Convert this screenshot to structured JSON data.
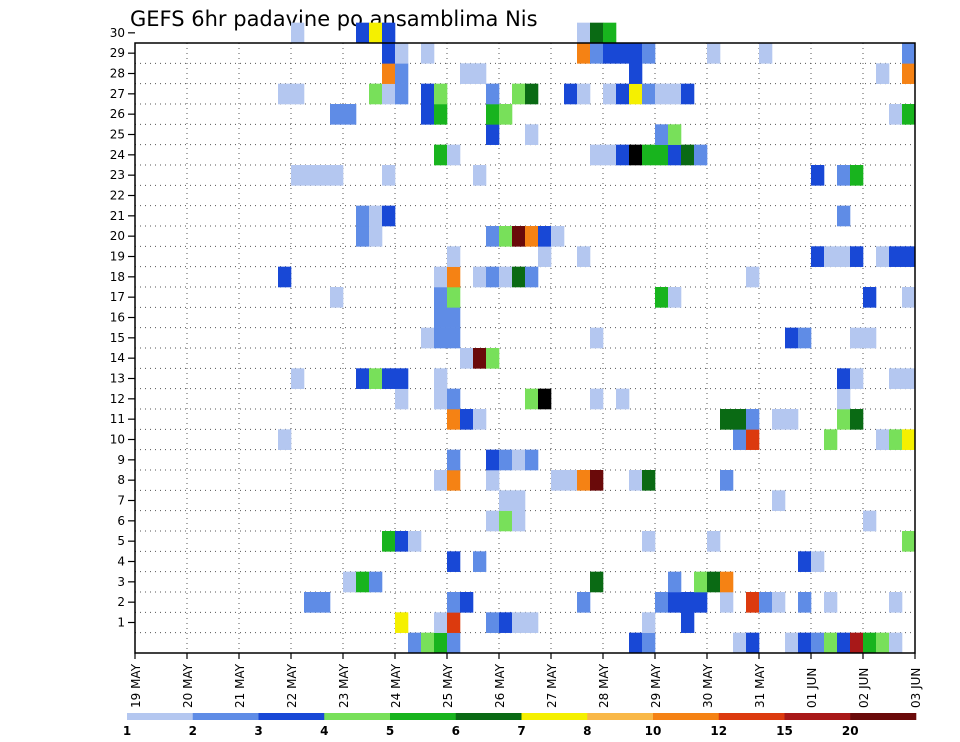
{
  "chart_data": {
    "type": "heatmap",
    "title": "GEFS 6hr padavine po ansamblima Nis",
    "xlabel": "",
    "ylabel": "",
    "x_tick_labels": [
      "19 MAY",
      "20 MAY",
      "21 MAY",
      "22 MAY",
      "23 MAY",
      "24 MAY",
      "25 MAY",
      "26 MAY",
      "27 MAY",
      "28 MAY",
      "29 MAY",
      "30 MAY",
      "31 MAY",
      "01 JUN",
      "02 JUN",
      "03 JUN"
    ],
    "y_tick_labels": [
      "1",
      "2",
      "3",
      "4",
      "5",
      "6",
      "7",
      "8",
      "9",
      "10",
      "11",
      "12",
      "13",
      "14",
      "15",
      "16",
      "17",
      "18",
      "19",
      "20",
      "21",
      "22",
      "23",
      "24",
      "25",
      "26",
      "27",
      "28",
      "29",
      "30"
    ],
    "x_range_steps": [
      0,
      60
    ],
    "y_range_members": [
      0,
      30
    ],
    "grid": true,
    "legend": "bottom",
    "colorbar": {
      "labels": [
        "1",
        "2",
        "3",
        "4",
        "5",
        "6",
        "7",
        "8",
        "10",
        "12",
        "15",
        "20"
      ],
      "colors": [
        "#b4c7f0",
        "#5f8ce6",
        "#1848d6",
        "#78e05a",
        "#18b41e",
        "#0a6a14",
        "#f5f000",
        "#f9b848",
        "#f58214",
        "#dc3a0e",
        "#a81818",
        "#6a0a0a"
      ]
    },
    "member_rows": {
      "30": [
        [
          12,
          1
        ],
        [
          17,
          3
        ],
        [
          18,
          7
        ],
        [
          19,
          3
        ],
        [
          34,
          1
        ],
        [
          35,
          6
        ],
        [
          36,
          5
        ]
      ],
      "29": [
        [
          19,
          3
        ],
        [
          20,
          1
        ],
        [
          22,
          1
        ],
        [
          34,
          9
        ],
        [
          35,
          2
        ],
        [
          36,
          3
        ],
        [
          37,
          3
        ],
        [
          38,
          3
        ],
        [
          39,
          2
        ],
        [
          44,
          1
        ],
        [
          48,
          1
        ],
        [
          59,
          2
        ]
      ],
      "28": [
        [
          19,
          9
        ],
        [
          20,
          2
        ],
        [
          25,
          1
        ],
        [
          26,
          1
        ],
        [
          38,
          3
        ],
        [
          57,
          1
        ],
        [
          59,
          9
        ]
      ],
      "27": [
        [
          11,
          1
        ],
        [
          12,
          1
        ],
        [
          18,
          4
        ],
        [
          19,
          1
        ],
        [
          20,
          2
        ],
        [
          22,
          3
        ],
        [
          23,
          4
        ],
        [
          27,
          2
        ],
        [
          29,
          4
        ],
        [
          30,
          6
        ],
        [
          33,
          3
        ],
        [
          34,
          1
        ],
        [
          36,
          1
        ],
        [
          37,
          3
        ],
        [
          38,
          7
        ],
        [
          39,
          2
        ],
        [
          40,
          1
        ],
        [
          41,
          1
        ],
        [
          42,
          3
        ]
      ],
      "26": [
        [
          15,
          2
        ],
        [
          16,
          2
        ],
        [
          22,
          3
        ],
        [
          23,
          5
        ],
        [
          27,
          5
        ],
        [
          28,
          4
        ],
        [
          58,
          1
        ],
        [
          59,
          5
        ]
      ],
      "25": [
        [
          27,
          3
        ],
        [
          30,
          1
        ],
        [
          40,
          2
        ],
        [
          41,
          4
        ]
      ],
      "24": [
        [
          23,
          5
        ],
        [
          24,
          1
        ],
        [
          35,
          1
        ],
        [
          36,
          1
        ],
        [
          37,
          3
        ],
        [
          38,
          14
        ],
        [
          39,
          5
        ],
        [
          40,
          5
        ],
        [
          41,
          3
        ],
        [
          42,
          6
        ],
        [
          43,
          2
        ]
      ],
      "23": [
        [
          12,
          1
        ],
        [
          13,
          1
        ],
        [
          14,
          1
        ],
        [
          15,
          1
        ],
        [
          19,
          1
        ],
        [
          26,
          1
        ],
        [
          52,
          3
        ],
        [
          54,
          2
        ],
        [
          55,
          5
        ]
      ],
      "21": [
        [
          17,
          2
        ],
        [
          18,
          1
        ],
        [
          19,
          3
        ],
        [
          54,
          2
        ]
      ],
      "20": [
        [
          17,
          2
        ],
        [
          18,
          1
        ],
        [
          27,
          2
        ],
        [
          28,
          4
        ],
        [
          29,
          12
        ],
        [
          30,
          9
        ],
        [
          31,
          3
        ],
        [
          32,
          1
        ]
      ],
      "19": [
        [
          24,
          1
        ],
        [
          31,
          1
        ],
        [
          34,
          1
        ],
        [
          52,
          1
        ],
        [
          52,
          3
        ],
        [
          53,
          1
        ],
        [
          54,
          1
        ],
        [
          55,
          3
        ],
        [
          57,
          1
        ],
        [
          58,
          3
        ],
        [
          59,
          3
        ]
      ],
      "18": [
        [
          11,
          3
        ],
        [
          23,
          1
        ],
        [
          24,
          9
        ],
        [
          26,
          1
        ],
        [
          27,
          2
        ],
        [
          28,
          1
        ],
        [
          29,
          6
        ],
        [
          30,
          2
        ],
        [
          47,
          1
        ]
      ],
      "17": [
        [
          15,
          1
        ],
        [
          23,
          2
        ],
        [
          24,
          4
        ],
        [
          40,
          5
        ],
        [
          41,
          1
        ],
        [
          56,
          3
        ],
        [
          59,
          1
        ]
      ],
      "16": [
        [
          23,
          2
        ],
        [
          24,
          2
        ]
      ],
      "15": [
        [
          22,
          1
        ],
        [
          23,
          2
        ],
        [
          24,
          2
        ],
        [
          35,
          1
        ],
        [
          50,
          3
        ],
        [
          51,
          2
        ],
        [
          55,
          1
        ],
        [
          56,
          1
        ]
      ],
      "14": [
        [
          25,
          1
        ],
        [
          26,
          12
        ],
        [
          27,
          4
        ]
      ],
      "13": [
        [
          12,
          1
        ],
        [
          17,
          3
        ],
        [
          18,
          4
        ],
        [
          19,
          3
        ],
        [
          20,
          3
        ],
        [
          23,
          1
        ],
        [
          54,
          3
        ],
        [
          55,
          1
        ],
        [
          58,
          1
        ],
        [
          59,
          1
        ]
      ],
      "12": [
        [
          20,
          1
        ],
        [
          23,
          1
        ],
        [
          24,
          2
        ],
        [
          30,
          4
        ],
        [
          31,
          14
        ],
        [
          35,
          1
        ],
        [
          37,
          1
        ],
        [
          54,
          1
        ]
      ],
      "11": [
        [
          24,
          9
        ],
        [
          25,
          3
        ],
        [
          26,
          1
        ],
        [
          45,
          6
        ],
        [
          46,
          6
        ],
        [
          47,
          2
        ],
        [
          49,
          1
        ],
        [
          50,
          1
        ],
        [
          54,
          4
        ],
        [
          55,
          6
        ]
      ],
      "10": [
        [
          11,
          1
        ],
        [
          46,
          2
        ],
        [
          47,
          10
        ],
        [
          53,
          4
        ],
        [
          57,
          1
        ],
        [
          58,
          4
        ],
        [
          59,
          7
        ]
      ],
      "9": [
        [
          24,
          2
        ],
        [
          27,
          3
        ],
        [
          28,
          2
        ],
        [
          29,
          1
        ],
        [
          30,
          2
        ]
      ],
      "8": [
        [
          23,
          1
        ],
        [
          24,
          9
        ],
        [
          27,
          1
        ],
        [
          32,
          1
        ],
        [
          33,
          1
        ],
        [
          34,
          9
        ],
        [
          35,
          12
        ],
        [
          38,
          1
        ],
        [
          39,
          6
        ],
        [
          45,
          2
        ]
      ],
      "7": [
        [
          28,
          1
        ],
        [
          29,
          1
        ],
        [
          49,
          1
        ]
      ],
      "6": [
        [
          27,
          1
        ],
        [
          28,
          4
        ],
        [
          29,
          1
        ],
        [
          56,
          1
        ]
      ],
      "5": [
        [
          19,
          5
        ],
        [
          20,
          3
        ],
        [
          21,
          1
        ],
        [
          39,
          1
        ],
        [
          44,
          1
        ],
        [
          59,
          4
        ]
      ],
      "4": [
        [
          24,
          3
        ],
        [
          26,
          2
        ],
        [
          51,
          3
        ],
        [
          52,
          1
        ]
      ],
      "3": [
        [
          16,
          1
        ],
        [
          17,
          5
        ],
        [
          18,
          2
        ],
        [
          35,
          6
        ],
        [
          41,
          2
        ],
        [
          43,
          4
        ],
        [
          44,
          6
        ],
        [
          45,
          9
        ]
      ],
      "2": [
        [
          13,
          2
        ],
        [
          14,
          2
        ],
        [
          24,
          2
        ],
        [
          25,
          3
        ],
        [
          34,
          2
        ],
        [
          40,
          2
        ],
        [
          41,
          3
        ],
        [
          42,
          3
        ],
        [
          43,
          3
        ],
        [
          45,
          1
        ],
        [
          47,
          10
        ],
        [
          48,
          2
        ],
        [
          49,
          1
        ],
        [
          51,
          2
        ],
        [
          53,
          1
        ],
        [
          58,
          1
        ]
      ],
      "1": [
        [
          20,
          7
        ],
        [
          23,
          1
        ],
        [
          24,
          10
        ],
        [
          27,
          2
        ],
        [
          28,
          3
        ],
        [
          29,
          1
        ],
        [
          30,
          1
        ],
        [
          39,
          1
        ],
        [
          42,
          3
        ]
      ],
      "0": [
        [
          21,
          2
        ],
        [
          22,
          4
        ],
        [
          23,
          5
        ],
        [
          24,
          2
        ],
        [
          38,
          3
        ],
        [
          39,
          2
        ],
        [
          46,
          1
        ],
        [
          47,
          3
        ],
        [
          50,
          1
        ],
        [
          51,
          3
        ],
        [
          52,
          2
        ],
        [
          53,
          4
        ],
        [
          54,
          3
        ],
        [
          55,
          11
        ],
        [
          56,
          5
        ],
        [
          57,
          4
        ],
        [
          58,
          1
        ]
      ]
    }
  }
}
